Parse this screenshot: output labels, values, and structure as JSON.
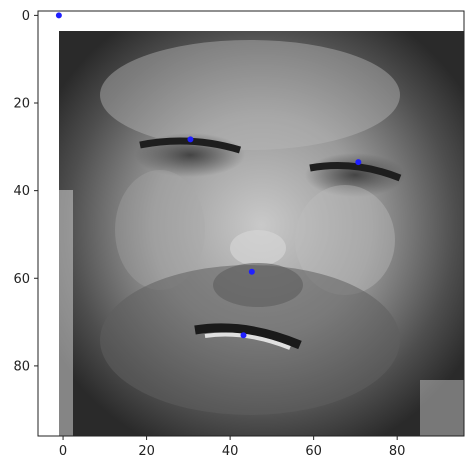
{
  "chart_data": {
    "type": "scatter",
    "title": "",
    "xlabel": "",
    "ylabel": "",
    "xlim": [
      -6,
      96
    ],
    "ylim": [
      96,
      -1
    ],
    "y_inverted": true,
    "grid": false,
    "legend": "none",
    "background_image": {
      "description": "grayscale image",
      "x_extent": [
        0,
        95
      ],
      "y_extent": [
        0,
        95
      ]
    },
    "x_ticks": [
      0,
      20,
      40,
      60,
      80
    ],
    "y_ticks": [
      0,
      20,
      40,
      60,
      80
    ],
    "series": [
      {
        "marker_color": "#1f1fff",
        "points": [
          {
            "x": -1,
            "y": 0
          },
          {
            "x": 30.5,
            "y": 28.3
          },
          {
            "x": 70.7,
            "y": 33.5
          },
          {
            "x": 45.2,
            "y": 58.5
          },
          {
            "x": 43.2,
            "y": 73.0
          }
        ]
      }
    ]
  },
  "colors": {
    "axis": "#222222",
    "marker": "#1f1fff",
    "background": "#ffffff"
  }
}
